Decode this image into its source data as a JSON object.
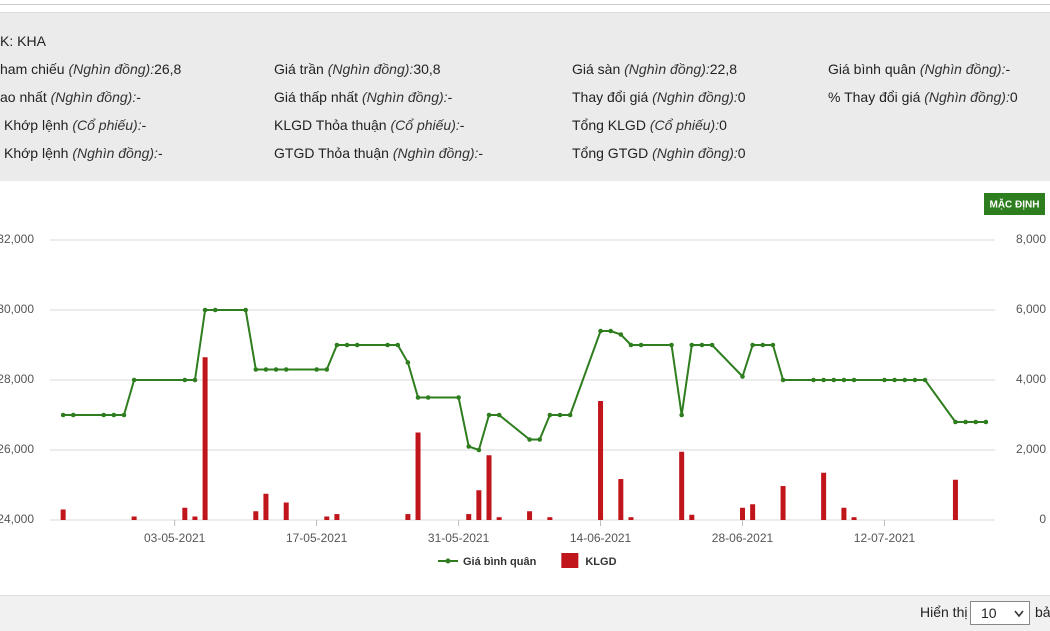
{
  "info": {
    "title": "K: KHA",
    "rows": [
      [
        {
          "label": "ham chiếu",
          "unit": "(Nghìn đồng):",
          "value": "26,8"
        },
        {
          "label": "Giá trần",
          "unit": "(Nghìn đồng):",
          "value": "30,8"
        },
        {
          "label": "Giá sàn",
          "unit": "(Nghìn đồng):",
          "value": "22,8"
        },
        {
          "label": "Giá bình quân",
          "unit": "(Nghìn đồng):",
          "value": "-"
        }
      ],
      [
        {
          "label": "ao nhất",
          "unit": "(Nghìn đồng):",
          "value": "-"
        },
        {
          "label": "Giá thấp nhất",
          "unit": "(Nghìn đồng):",
          "value": "-"
        },
        {
          "label": "Thay đổi giá",
          "unit": "(Nghìn đồng):",
          "value": "0"
        },
        {
          "label": "% Thay đổi giá",
          "unit": "(Nghìn đồng):",
          "value": "0"
        }
      ],
      [
        {
          "label": "Khớp lệnh",
          "unit": "(Cổ phiếu):",
          "value": "-"
        },
        {
          "label": "KLGD Thỏa thuận",
          "unit": "(Cổ phiếu):",
          "value": "-"
        },
        {
          "label": "Tổng KLGD",
          "unit": "(Cổ phiếu):",
          "value": "0"
        }
      ],
      [
        {
          "label": "Khớp lệnh",
          "unit": "(Nghìn đồng):",
          "value": "-"
        },
        {
          "label": "GTGD Thỏa thuận",
          "unit": "(Nghìn đồng):",
          "value": "-"
        },
        {
          "label": "Tổng GTGD",
          "unit": "(Nghìn đồng):",
          "value": "0"
        }
      ]
    ]
  },
  "button": "MẶC ĐỊNH",
  "chart_data": {
    "type": "combo",
    "x": [
      "2021-04-22",
      "2021-04-23",
      "2021-04-26",
      "2021-04-27",
      "2021-04-28",
      "2021-04-29",
      "2021-05-04",
      "2021-05-05",
      "2021-05-06",
      "2021-05-07",
      "2021-05-10",
      "2021-05-11",
      "2021-05-12",
      "2021-05-13",
      "2021-05-14",
      "2021-05-17",
      "2021-05-18",
      "2021-05-19",
      "2021-05-20",
      "2021-05-21",
      "2021-05-24",
      "2021-05-25",
      "2021-05-26",
      "2021-05-27",
      "2021-05-28",
      "2021-05-31",
      "2021-06-01",
      "2021-06-02",
      "2021-06-03",
      "2021-06-04",
      "2021-06-07",
      "2021-06-08",
      "2021-06-09",
      "2021-06-10",
      "2021-06-11",
      "2021-06-14",
      "2021-06-15",
      "2021-06-16",
      "2021-06-17",
      "2021-06-18",
      "2021-06-21",
      "2021-06-22",
      "2021-06-23",
      "2021-06-24",
      "2021-06-25",
      "2021-06-28",
      "2021-06-29",
      "2021-06-30",
      "2021-07-01",
      "2021-07-02",
      "2021-07-05",
      "2021-07-06",
      "2021-07-07",
      "2021-07-08",
      "2021-07-09",
      "2021-07-12",
      "2021-07-13",
      "2021-07-14",
      "2021-07-15",
      "2021-07-16",
      "2021-07-19",
      "2021-07-20",
      "2021-07-21",
      "2021-07-22"
    ],
    "series": [
      {
        "name": "Giá bình quân",
        "type": "line",
        "color": "#2e7d1e",
        "axis": "y",
        "values": [
          27000,
          27000,
          27000,
          27000,
          27000,
          28000,
          28000,
          28000,
          30000,
          30000,
          30000,
          28300,
          28300,
          28300,
          28300,
          28300,
          28300,
          29000,
          29000,
          29000,
          29000,
          29000,
          28500,
          27500,
          27500,
          27500,
          26100,
          26000,
          27000,
          27000,
          26300,
          26300,
          27000,
          27000,
          27000,
          29400,
          29400,
          29300,
          29000,
          29000,
          29000,
          27000,
          29000,
          29000,
          29000,
          28100,
          29000,
          29000,
          29000,
          28000,
          28000,
          28000,
          28000,
          28000,
          28000,
          28000,
          28000,
          28000,
          28000,
          28000,
          26800,
          26800,
          26800,
          26800
        ]
      },
      {
        "name": "KLGD",
        "type": "bar",
        "color": "#c0151b",
        "axis": "y2",
        "values": [
          300,
          0,
          0,
          0,
          0,
          100,
          350,
          100,
          4650,
          0,
          0,
          250,
          750,
          0,
          500,
          0,
          100,
          170,
          0,
          0,
          0,
          0,
          170,
          2500,
          0,
          0,
          170,
          850,
          1850,
          80,
          250,
          0,
          80,
          0,
          0,
          3400,
          0,
          1170,
          80,
          0,
          0,
          1950,
          150,
          0,
          0,
          350,
          450,
          0,
          0,
          970,
          0,
          1350,
          0,
          350,
          80,
          0,
          0,
          0,
          0,
          0,
          1150,
          0,
          0,
          0
        ]
      }
    ],
    "xlim": [
      "2021-04-21",
      "2021-07-23"
    ],
    "xticks": [
      {
        "value": "2021-05-03",
        "label": "03-05-2021"
      },
      {
        "value": "2021-05-17",
        "label": "17-05-2021"
      },
      {
        "value": "2021-05-31",
        "label": "31-05-2021"
      },
      {
        "value": "2021-06-14",
        "label": "14-06-2021"
      },
      {
        "value": "2021-06-28",
        "label": "28-06-2021"
      },
      {
        "value": "2021-07-12",
        "label": "12-07-2021"
      }
    ],
    "ylim": [
      24000,
      32000
    ],
    "yticks": [
      {
        "value": 24000,
        "label": "24,000"
      },
      {
        "value": 26000,
        "label": "26,000"
      },
      {
        "value": 28000,
        "label": "28,000"
      },
      {
        "value": 30000,
        "label": "30,000"
      },
      {
        "value": 32000,
        "label": "32,000"
      }
    ],
    "y2lim": [
      0,
      8000
    ],
    "y2ticks": [
      0,
      {
        "value": 2000,
        "label": "2,000"
      },
      {
        "value": 4000,
        "label": "4,000"
      },
      {
        "value": 6000,
        "label": "6,000"
      },
      {
        "value": 8000,
        "label": "8,000"
      }
    ],
    "grid": true
  },
  "bottom": {
    "show": "Hiển thị",
    "select": "10",
    "rest": "bả"
  }
}
